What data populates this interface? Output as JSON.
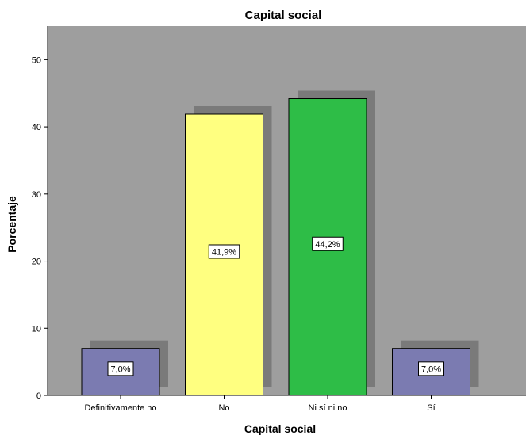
{
  "chart_data": {
    "type": "bar",
    "title": "Capital social",
    "xlabel": "Capital social",
    "ylabel": "Porcentaje",
    "categories": [
      "Definitivamente no",
      "No",
      "Ni sí ni no",
      "Sí"
    ],
    "values": [
      7.0,
      41.9,
      44.2,
      7.0
    ],
    "data_labels": [
      "7,0%",
      "41,9%",
      "44,2%",
      "7,0%"
    ],
    "bar_colors": [
      "#7b7bb1",
      "#ffff80",
      "#2ebd47",
      "#7b7bb1"
    ],
    "ylim": [
      0,
      55
    ],
    "yticks": [
      0,
      10,
      20,
      30,
      40,
      50
    ],
    "ytick_labels": [
      "0",
      "10",
      "20",
      "30",
      "40",
      "50"
    ],
    "grid": false,
    "legend": "none",
    "colors": {
      "plot_background": "#9e9e9e",
      "bar_shadow": "#7a7a7a",
      "axis": "#000000"
    }
  }
}
